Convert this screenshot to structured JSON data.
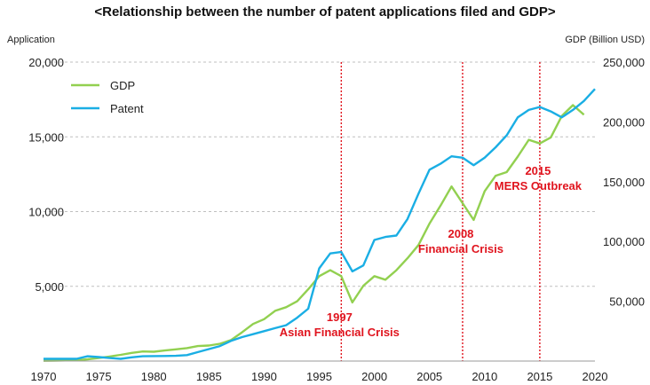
{
  "chart_data": {
    "type": "line",
    "title": "<Relationship between the number of patent applications filed and GDP>",
    "ylabel_left": "Application",
    "ylabel_right": "GDP (Billion USD)",
    "xlim": [
      1970,
      2020
    ],
    "ylim_left": [
      0,
      20000
    ],
    "ylim_right": [
      0,
      250000
    ],
    "x_ticks": [
      1970,
      1975,
      1980,
      1985,
      1990,
      1995,
      2000,
      2005,
      2010,
      2015,
      2020
    ],
    "y_ticks_left": [
      {
        "value": 5000,
        "label": "5,000"
      },
      {
        "value": 10000,
        "label": "10,000"
      },
      {
        "value": 15000,
        "label": "15,000"
      },
      {
        "value": 20000,
        "label": "20,000"
      }
    ],
    "y_ticks_right": [
      {
        "value": 50000,
        "label": "50,000"
      },
      {
        "value": 100000,
        "label": "100,000"
      },
      {
        "value": 150000,
        "label": "150,000"
      },
      {
        "value": 200000,
        "label": "200,000"
      },
      {
        "value": 250000,
        "label": "250,000"
      }
    ],
    "grid": "horizontal dashed",
    "legend": {
      "placement": "top-left"
    },
    "series": [
      {
        "name": "GDP",
        "axis": "right",
        "color": "#92d050",
        "points": [
          [
            1970,
            200
          ],
          [
            1971,
            400
          ],
          [
            1972,
            500
          ],
          [
            1973,
            700
          ],
          [
            1974,
            1500
          ],
          [
            1975,
            2500
          ],
          [
            1976,
            3800
          ],
          [
            1977,
            5200
          ],
          [
            1978,
            6800
          ],
          [
            1979,
            8000
          ],
          [
            1980,
            7800
          ],
          [
            1981,
            8800
          ],
          [
            1982,
            9800
          ],
          [
            1983,
            10800
          ],
          [
            1984,
            12500
          ],
          [
            1985,
            13000
          ],
          [
            1986,
            14500
          ],
          [
            1987,
            17500
          ],
          [
            1988,
            24000
          ],
          [
            1989,
            31000
          ],
          [
            1990,
            35000
          ],
          [
            1991,
            42000
          ],
          [
            1992,
            45000
          ],
          [
            1993,
            50000
          ],
          [
            1994,
            60000
          ],
          [
            1995,
            71000
          ],
          [
            1996,
            76000
          ],
          [
            1997,
            71000
          ],
          [
            1998,
            49000
          ],
          [
            1999,
            63000
          ],
          [
            2000,
            71000
          ],
          [
            2001,
            68000
          ],
          [
            2002,
            76000
          ],
          [
            2003,
            86000
          ],
          [
            2004,
            97000
          ],
          [
            2005,
            115000
          ],
          [
            2006,
            130000
          ],
          [
            2007,
            146000
          ],
          [
            2008,
            132000
          ],
          [
            2009,
            118000
          ],
          [
            2010,
            142000
          ],
          [
            2011,
            155000
          ],
          [
            2012,
            158000
          ],
          [
            2013,
            171000
          ],
          [
            2014,
            185000
          ],
          [
            2015,
            182000
          ],
          [
            2016,
            187000
          ],
          [
            2017,
            205000
          ],
          [
            2018,
            214000
          ],
          [
            2019,
            206000
          ]
        ]
      },
      {
        "name": "Patent",
        "axis": "left",
        "color": "#1aaee4",
        "points": [
          [
            1970,
            150
          ],
          [
            1971,
            150
          ],
          [
            1972,
            150
          ],
          [
            1973,
            150
          ],
          [
            1974,
            320
          ],
          [
            1975,
            270
          ],
          [
            1976,
            200
          ],
          [
            1977,
            150
          ],
          [
            1978,
            250
          ],
          [
            1979,
            320
          ],
          [
            1980,
            330
          ],
          [
            1981,
            340
          ],
          [
            1982,
            350
          ],
          [
            1983,
            400
          ],
          [
            1984,
            600
          ],
          [
            1985,
            800
          ],
          [
            1986,
            1000
          ],
          [
            1987,
            1350
          ],
          [
            1988,
            1600
          ],
          [
            1989,
            1800
          ],
          [
            1990,
            2000
          ],
          [
            1991,
            2200
          ],
          [
            1992,
            2400
          ],
          [
            1993,
            2900
          ],
          [
            1994,
            3500
          ],
          [
            1995,
            6200
          ],
          [
            1996,
            7200
          ],
          [
            1997,
            7300
          ],
          [
            1998,
            6000
          ],
          [
            1999,
            6400
          ],
          [
            2000,
            8100
          ],
          [
            2001,
            8300
          ],
          [
            2002,
            8400
          ],
          [
            2003,
            9500
          ],
          [
            2004,
            11200
          ],
          [
            2005,
            12800
          ],
          [
            2006,
            13200
          ],
          [
            2007,
            13700
          ],
          [
            2008,
            13600
          ],
          [
            2009,
            13100
          ],
          [
            2010,
            13600
          ],
          [
            2011,
            14300
          ],
          [
            2012,
            15100
          ],
          [
            2013,
            16300
          ],
          [
            2014,
            16800
          ],
          [
            2015,
            17000
          ],
          [
            2016,
            16700
          ],
          [
            2017,
            16300
          ],
          [
            2018,
            16800
          ],
          [
            2019,
            17400
          ],
          [
            2020,
            18200
          ]
        ]
      }
    ],
    "events": [
      {
        "year": 1997,
        "label_year": "1997",
        "label_event": "Asian Financial Crisis"
      },
      {
        "year": 2008,
        "label_year": "2008",
        "label_event": "Financial Crisis"
      },
      {
        "year": 2015,
        "label_year": "2015",
        "label_event": "MERS Outbreak"
      }
    ]
  }
}
